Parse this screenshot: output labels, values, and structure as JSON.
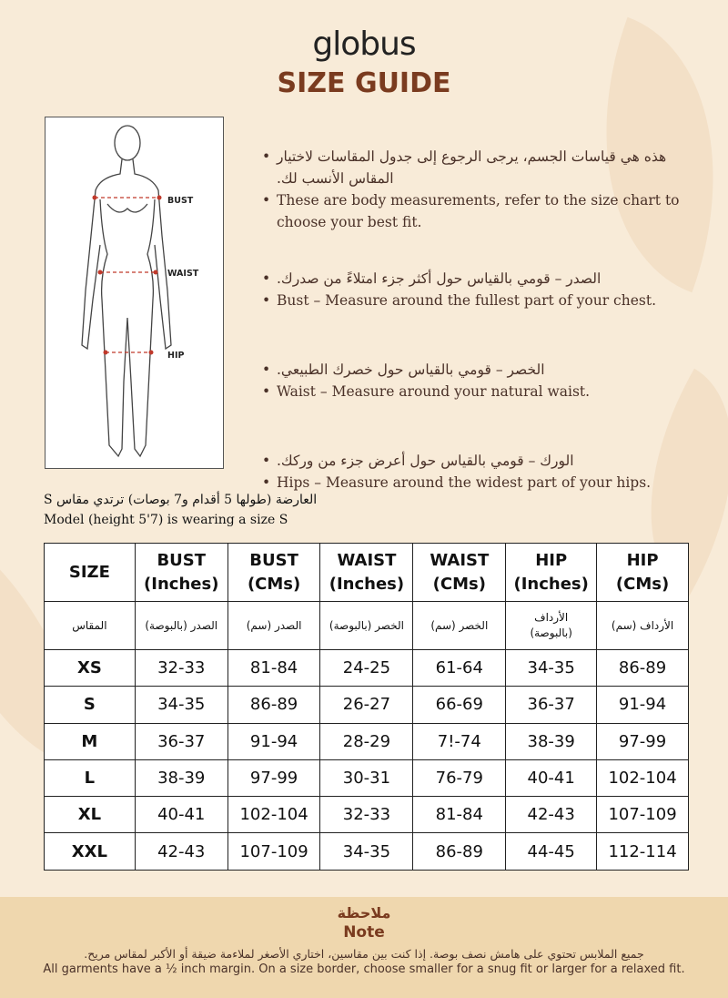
{
  "brand": "globus",
  "title": "SIZE GUIDE",
  "figure": {
    "labels": {
      "bust": "BUST",
      "waist": "WAIST",
      "hip": "HIP"
    }
  },
  "bullets": [
    {
      "ar": "هذه هي قياسات الجسم، يرجى الرجوع إلى جدول المقاسات لاختيار المقاس الأنسب لك.",
      "en": "These are body measurements, refer to the size chart to choose your best fit."
    },
    {
      "ar": "الصدر – قومي بالقياس حول أكثر جزء امتلاءً من صدرك.",
      "en": "Bust – Measure around the fullest part of your chest."
    },
    {
      "ar": "الخصر – قومي بالقياس حول خصرك الطبيعي.",
      "en": "Waist – Measure around your natural waist."
    },
    {
      "ar": "الورك – قومي بالقياس حول أعرض جزء من وركك.",
      "en": "Hips – Measure around the widest part of your hips."
    }
  ],
  "model": {
    "ar": "العارضة (طولها 5 أقدام و7 بوصات) ترتدي مقاس S",
    "en": "Model (height 5'7) is wearing a size S"
  },
  "table": {
    "headers": [
      [
        "SIZE",
        ""
      ],
      [
        "BUST",
        "(Inches)"
      ],
      [
        "BUST",
        "(CMs)"
      ],
      [
        "WAIST",
        "(Inches)"
      ],
      [
        "WAIST",
        "(CMs)"
      ],
      [
        "HIP",
        "(Inches)"
      ],
      [
        "HIP",
        "(CMs)"
      ]
    ],
    "headers_ar": [
      "المقاس",
      "الصدر (بالبوصة)",
      "الصدر (سم)",
      "الخصر (بالبوصة)",
      "الخصر (سم)",
      "الأرداف (بالبوصة)",
      "الأرداف (سم)"
    ],
    "rows": [
      [
        "XS",
        "32-33",
        "81-84",
        "24-25",
        "61-64",
        "34-35",
        "86-89"
      ],
      [
        "S",
        "34-35",
        "86-89",
        "26-27",
        "66-69",
        "36-37",
        "91-94"
      ],
      [
        "M",
        "36-37",
        "91-94",
        "28-29",
        "7!-74",
        "38-39",
        "97-99"
      ],
      [
        "L",
        "38-39",
        "97-99",
        "30-31",
        "76-79",
        "40-41",
        "102-104"
      ],
      [
        "XL",
        "40-41",
        "102-104",
        "32-33",
        "81-84",
        "42-43",
        "107-109"
      ],
      [
        "XXL",
        "42-43",
        "107-109",
        "34-35",
        "86-89",
        "44-45",
        "112-114"
      ]
    ]
  },
  "note": {
    "title_ar": "ملاحظة",
    "title_en": "Note",
    "text_ar": "جميع الملابس تحتوي على هامش نصف بوصة. إذا كنت بين مقاسين، اختاري الأصغر لملاءمة ضيقة أو الأكبر لمقاس مريح.",
    "text_en": "All garments have a ½ inch margin. On a size border, choose smaller for a snug fit or larger for a relaxed fit."
  },
  "colors": {
    "accent": "#7a3b1f",
    "background": "#f8ebd8",
    "footer": "#efd7ae"
  }
}
